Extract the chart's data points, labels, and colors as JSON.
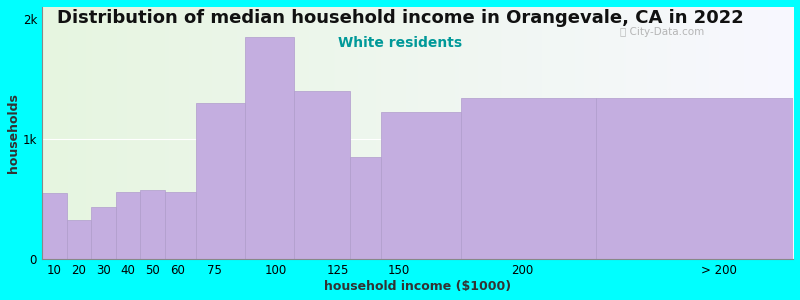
{
  "title": "Distribution of median household income in Orangevale, CA in 2022",
  "subtitle": "White residents",
  "xlabel": "household income ($1000)",
  "ylabel": "households",
  "background_color": "#00FFFF",
  "bar_color": "#c4aee0",
  "bar_edge_color": "#b09ccc",
  "bin_lefts": [
    5,
    15,
    25,
    35,
    45,
    55,
    67.5,
    87.5,
    107.5,
    130,
    142.5,
    175,
    230
  ],
  "bin_rights": [
    15,
    25,
    35,
    45,
    55,
    67.5,
    87.5,
    107.5,
    130,
    142.5,
    175,
    230,
    310
  ],
  "values": [
    550,
    330,
    440,
    560,
    580,
    560,
    1300,
    1850,
    1400,
    850,
    1230,
    1340,
    1340
  ],
  "xtick_positions": [
    10,
    20,
    30,
    40,
    50,
    60,
    75,
    100,
    125,
    150,
    200
  ],
  "xtick_labels": [
    "10",
    "20",
    "30",
    "40",
    "50",
    "60",
    "75",
    "100",
    "125",
    "150",
    "200"
  ],
  "xtick_extra_pos": 280,
  "xtick_extra_label": "> 200",
  "ylim": [
    0,
    2100
  ],
  "ytick_positions": [
    0,
    1000,
    2000
  ],
  "ytick_labels": [
    "0",
    "1k",
    "2k"
  ],
  "title_fontsize": 13,
  "subtitle_fontsize": 10,
  "axis_label_fontsize": 9,
  "tick_fontsize": 8.5
}
